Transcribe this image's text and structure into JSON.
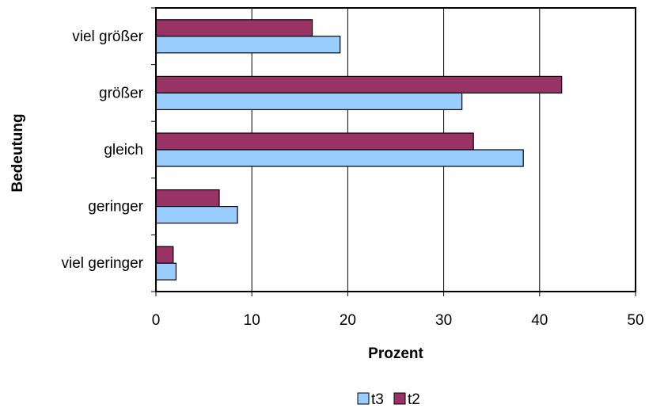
{
  "chart_data": {
    "type": "bar",
    "orientation": "horizontal",
    "categories": [
      "viel größer",
      "größer ",
      "gleich",
      "geringer",
      "viel geringer"
    ],
    "series": [
      {
        "name": "t2",
        "color": "#993366",
        "values": [
          16.3,
          42.3,
          33.1,
          6.6,
          1.8
        ]
      },
      {
        "name": "t3",
        "color": "#99ccff",
        "values": [
          19.2,
          31.9,
          38.3,
          8.5,
          2.1
        ]
      }
    ],
    "legend_order": [
      "t3",
      "t2"
    ],
    "xlabel": "Prozent",
    "ylabel": "Bedeutung",
    "xlim": [
      0,
      50
    ],
    "xticks": [
      0,
      10,
      20,
      30,
      40,
      50
    ],
    "grid": "vertical",
    "legend": "bottom"
  }
}
